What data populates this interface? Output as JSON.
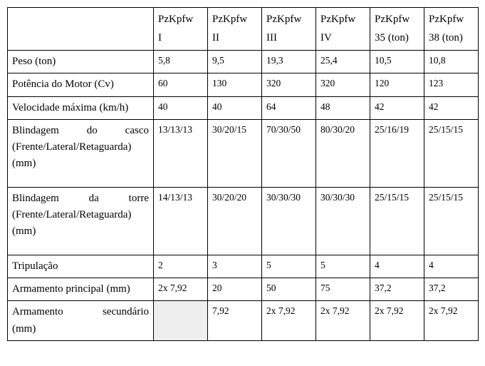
{
  "cols": {
    "c1": {
      "l1": "PzKpfw",
      "l2": "I"
    },
    "c2": {
      "l1": "PzKpfw",
      "l2": "II"
    },
    "c3": {
      "l1": "PzKpfw",
      "l2": "III"
    },
    "c4": {
      "l1": "PzKpfw",
      "l2": "IV"
    },
    "c5": {
      "l1": "PzKpfw",
      "l2": "35 (ton)"
    },
    "c6": {
      "l1": "PzKpfw",
      "l2": "38 (ton)"
    }
  },
  "rows": {
    "peso": {
      "label": "Peso (ton)",
      "v": [
        "5,8",
        "9,5",
        "19,3",
        "25,4",
        "10,5",
        "10,8"
      ]
    },
    "potencia": {
      "label": "Potência do Motor (Cv)",
      "v": [
        "60",
        "130",
        "320",
        "320",
        "120",
        "123"
      ]
    },
    "velocidade": {
      "label": "Velocidade máxima (km/h)",
      "v": [
        "40",
        "40",
        "64",
        "48",
        "42",
        "42"
      ]
    },
    "blindagem_casco": {
      "l1a": "Blindagem",
      "l1b": "do",
      "l1c": "casco",
      "l2": "(Frente/Lateral/Retaguarda)",
      "l3": "(mm)",
      "v": [
        "13/13/13",
        "30/20/15",
        "70/30/50",
        "80/30/20",
        "25/16/19",
        "25/15/15"
      ]
    },
    "blindagem_torre": {
      "l1a": "Blindagem",
      "l1b": "da",
      "l1c": "torre",
      "l2": "(Frente/Lateral/Retaguarda)",
      "l3": "(mm)",
      "v": [
        "14/13/13",
        "30/20/20",
        "30/30/30",
        "30/30/30",
        "25/15/15",
        "25/15/15"
      ]
    },
    "tripulacao": {
      "label": "Tripulação",
      "v": [
        "2",
        "3",
        "5",
        "5",
        "4",
        "4"
      ]
    },
    "arm_principal": {
      "label": "Armamento principal (mm)",
      "v": [
        "2x 7,92",
        "20",
        "50",
        "75",
        "37,2",
        "37,2"
      ]
    },
    "arm_secundario": {
      "l1a": "Armamento",
      "l1b": "secundário",
      "l2": "(mm)",
      "v": [
        "",
        "7,92",
        "2x 7,92",
        "2x 7,92",
        "2x 7,92",
        "2x 7,92"
      ]
    }
  }
}
